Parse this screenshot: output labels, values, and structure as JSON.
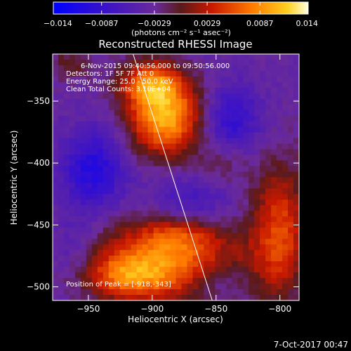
{
  "chart_data": {
    "type": "heatmap",
    "title": "Reconstructed RHESSI Image",
    "xlabel": "Heliocentric X (arcsec)",
    "ylabel": "Heliocentric Y (arcsec)",
    "xlim": [
      -978,
      -785
    ],
    "ylim": [
      -511,
      -312
    ],
    "xticks": [
      -950,
      -900,
      -850,
      -800
    ],
    "yticks": [
      -350,
      -400,
      -450,
      -500
    ],
    "xtick_labels": [
      "−950",
      "−900",
      "−850",
      "−800"
    ],
    "ytick_labels": [
      "−350",
      "−400",
      "−450",
      "−500"
    ],
    "colorbar": {
      "min": -0.014,
      "max": 0.014,
      "ticks": [
        -0.014,
        -0.0087,
        -0.0029,
        0.0029,
        0.0087,
        0.014
      ],
      "tick_labels": [
        "−0.014",
        "−0.0087",
        "−0.0029",
        "0.0029",
        "0.0087",
        "0.014"
      ],
      "unit_label": "(photons cm⁻² s⁻¹ asec⁻²)"
    },
    "annotations": [
      "6-Nov-2015 09:40:56.000 to 09:50:56.000",
      "Detectors: 1F 5F 7F  Att 0",
      "Energy Range: 25.0 - 50.0 keV",
      "Clean    Total Counts: 3.10E+04"
    ],
    "peak_label": "Position of Peak = [-918,-343]",
    "peak_position": [
      -918,
      -343
    ],
    "limb_line": [
      [
        -915,
        -312
      ],
      [
        -853,
        -511
      ]
    ],
    "sources": [
      {
        "kind": "positive",
        "x": -890,
        "y": -362,
        "amplitude": 0.014,
        "sx": 20,
        "sy": 22
      },
      {
        "kind": "positive",
        "x": -903,
        "y": -335,
        "amplitude": 0.0085,
        "sx": 16,
        "sy": 12
      },
      {
        "kind": "positive",
        "x": -890,
        "y": -480,
        "amplitude": 0.011,
        "sx": 42,
        "sy": 22
      },
      {
        "kind": "positive",
        "x": -920,
        "y": -492,
        "amplitude": 0.006,
        "sx": 22,
        "sy": 12
      },
      {
        "kind": "positive",
        "x": -880,
        "y": -457,
        "amplitude": 0.0045,
        "sx": 20,
        "sy": 10
      },
      {
        "kind": "positive",
        "x": -800,
        "y": -455,
        "amplitude": 0.0085,
        "sx": 16,
        "sy": 38
      },
      {
        "kind": "positive",
        "x": -845,
        "y": -400,
        "amplitude": 0.0028,
        "sx": 14,
        "sy": 14
      },
      {
        "kind": "positive",
        "x": -965,
        "y": -320,
        "amplitude": 0.0035,
        "sx": 12,
        "sy": 10
      },
      {
        "kind": "negative",
        "x": -946,
        "y": -405,
        "amplitude": -0.007,
        "sx": 18,
        "sy": 22
      },
      {
        "kind": "negative",
        "x": -838,
        "y": -365,
        "amplitude": -0.006,
        "sx": 16,
        "sy": 20
      },
      {
        "kind": "negative",
        "x": -870,
        "y": -432,
        "amplitude": -0.004,
        "sx": 22,
        "sy": 16
      },
      {
        "kind": "negative",
        "x": -850,
        "y": -495,
        "amplitude": -0.0035,
        "sx": 16,
        "sy": 10
      },
      {
        "kind": "negative",
        "x": -960,
        "y": -470,
        "amplitude": -0.003,
        "sx": 14,
        "sy": 20
      }
    ],
    "baseline": -0.0035
  },
  "footer": {
    "timestamp": "7-Oct-2017 00:47"
  }
}
